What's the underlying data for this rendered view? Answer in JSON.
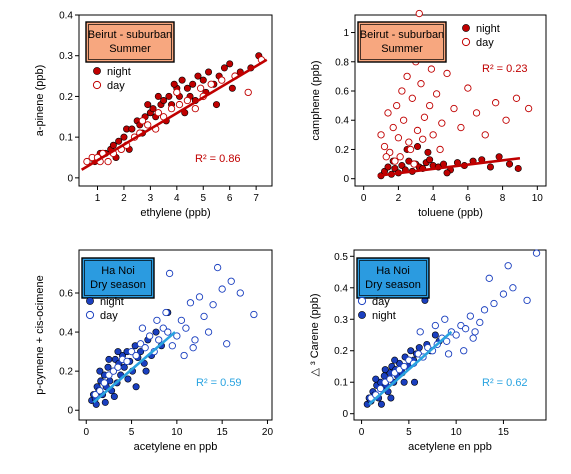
{
  "chart_data": [
    {
      "type": "scatter",
      "box_title": [
        "Beirut - suburban",
        "Summer"
      ],
      "box_color": "#f7a77f",
      "xlabel": "ethylene (ppb)",
      "ylabel": "a-pinene (ppb)",
      "xlim": [
        0.3,
        7.6
      ],
      "ylim": [
        -0.02,
        0.4
      ],
      "xticks": [
        1,
        2,
        3,
        4,
        5,
        6,
        7
      ],
      "yticks": [
        0.0,
        0.1,
        0.2,
        0.3,
        0.4
      ],
      "r2_text": "R² = 0.86",
      "r2_color": "#c00000",
      "fit": {
        "x": [
          0.4,
          7.4
        ],
        "y": [
          0.02,
          0.29
        ],
        "color": "#c00000"
      },
      "legend": [
        "night",
        "day"
      ],
      "legend_order": [
        "night",
        "day"
      ],
      "series": [
        {
          "name": "night",
          "style": "filled",
          "color": "#c00000",
          "x": [
            0.9,
            1.1,
            1.3,
            1.5,
            1.6,
            1.8,
            2.0,
            2.1,
            2.3,
            2.5,
            2.6,
            2.8,
            3.0,
            3.1,
            3.2,
            3.4,
            3.5,
            3.7,
            3.8,
            4.0,
            4.1,
            4.2,
            4.4,
            4.5,
            4.6,
            4.8,
            5.0,
            5.2,
            5.4,
            5.6,
            5.8,
            6.1,
            6.4,
            6.8,
            7.1,
            3.3,
            2.9,
            4.3,
            5.1,
            3.9,
            2.2,
            1.7,
            4.7,
            3.6,
            2.7,
            6.0,
            5.5
          ],
          "y": [
            0.04,
            0.06,
            0.06,
            0.07,
            0.08,
            0.09,
            0.1,
            0.12,
            0.12,
            0.14,
            0.13,
            0.15,
            0.16,
            0.17,
            0.15,
            0.18,
            0.19,
            0.2,
            0.18,
            0.22,
            0.2,
            0.24,
            0.22,
            0.2,
            0.23,
            0.25,
            0.24,
            0.26,
            0.23,
            0.25,
            0.27,
            0.22,
            0.26,
            0.27,
            0.3,
            0.2,
            0.18,
            0.16,
            0.21,
            0.23,
            0.07,
            0.05,
            0.19,
            0.14,
            0.11,
            0.28,
            0.18
          ]
        },
        {
          "name": "day",
          "style": "open",
          "color": "#c00000",
          "x": [
            0.6,
            0.8,
            1.0,
            1.2,
            1.4,
            1.6,
            1.9,
            2.1,
            2.4,
            2.6,
            2.9,
            3.2,
            3.5,
            3.8,
            4.1,
            4.4,
            4.7,
            5.0,
            5.3,
            5.7,
            6.2,
            6.7,
            7.2,
            1.1,
            2.7,
            3.3,
            4.0,
            4.9
          ],
          "y": [
            0.04,
            0.05,
            0.05,
            0.06,
            0.04,
            0.06,
            0.07,
            0.08,
            0.1,
            0.11,
            0.13,
            0.12,
            0.15,
            0.17,
            0.18,
            0.19,
            0.17,
            0.2,
            0.23,
            0.24,
            0.25,
            0.21,
            0.29,
            0.04,
            0.14,
            0.16,
            0.21,
            0.22
          ]
        }
      ]
    },
    {
      "type": "scatter",
      "box_title": [
        "Beirut - suburban",
        "Summer"
      ],
      "box_color": "#f7a77f",
      "xlabel": "toluene (ppb)",
      "ylabel": "camphene (ppb)",
      "xlim": [
        -0.5,
        10.5
      ],
      "ylim": [
        -0.05,
        1.12
      ],
      "xticks": [
        0,
        2,
        4,
        6,
        8,
        10
      ],
      "yticks": [
        0.0,
        0.2,
        0.4,
        0.6,
        0.8,
        1.0
      ],
      "r2_text": "R² = 0.23",
      "r2_color": "#c00000",
      "fit": {
        "x": [
          0.8,
          9.0
        ],
        "y": [
          0.02,
          0.14
        ],
        "color": "#c00000"
      },
      "legend": [
        "night",
        "day"
      ],
      "legend_order": [
        "night",
        "day"
      ],
      "series": [
        {
          "name": "night",
          "style": "filled",
          "color": "#c00000",
          "x": [
            1.0,
            1.2,
            1.4,
            1.6,
            1.8,
            2.0,
            2.2,
            2.4,
            2.6,
            2.8,
            3.0,
            3.2,
            3.4,
            3.6,
            3.8,
            4.0,
            4.3,
            4.6,
            5.0,
            5.4,
            5.8,
            6.3,
            6.8,
            7.3,
            7.8,
            8.4,
            8.9,
            2.5,
            3.1,
            3.7,
            1.7,
            4.8
          ],
          "y": [
            0.02,
            0.05,
            0.08,
            0.03,
            0.07,
            0.04,
            0.09,
            0.06,
            0.12,
            0.05,
            0.1,
            0.08,
            0.07,
            0.11,
            0.13,
            0.09,
            0.08,
            0.1,
            0.06,
            0.11,
            0.09,
            0.12,
            0.13,
            0.08,
            0.15,
            0.1,
            0.07,
            0.2,
            0.22,
            0.18,
            0.12,
            0.04
          ]
        },
        {
          "name": "day",
          "style": "open",
          "color": "#c00000",
          "x": [
            1.0,
            1.2,
            1.4,
            1.5,
            1.7,
            1.9,
            2.0,
            2.2,
            2.3,
            2.5,
            2.6,
            2.8,
            3.0,
            3.1,
            3.3,
            3.5,
            3.6,
            3.8,
            4.0,
            4.2,
            4.5,
            4.8,
            5.2,
            5.6,
            6.0,
            6.5,
            7.0,
            7.6,
            8.2,
            8.8,
            9.5,
            2.1,
            2.7,
            3.4,
            1.8,
            3.9,
            4.4,
            2.9,
            1.3,
            3.2
          ],
          "y": [
            0.3,
            0.22,
            0.45,
            0.18,
            0.35,
            0.5,
            0.28,
            0.6,
            0.4,
            0.7,
            0.25,
            0.55,
            0.8,
            0.33,
            0.65,
            0.42,
            0.9,
            0.5,
            0.3,
            0.58,
            0.38,
            0.72,
            0.48,
            0.35,
            0.62,
            0.45,
            0.3,
            0.52,
            0.4,
            0.55,
            0.48,
            0.15,
            0.2,
            0.27,
            0.12,
            0.75,
            0.2,
            0.1,
            0.15,
            1.13
          ]
        }
      ]
    },
    {
      "type": "scatter",
      "box_title": [
        "Ha Noi",
        "Dry season"
      ],
      "box_color": "#2b9be0",
      "xlabel": "acetylene en ppb",
      "ylabel": "p-cymene + cis-ocimene",
      "xlim": [
        -0.8,
        20.5
      ],
      "ylim": [
        -0.05,
        0.82
      ],
      "xticks": [
        0,
        5,
        10,
        15,
        20
      ],
      "yticks": [
        0.0,
        0.2,
        0.4,
        0.6
      ],
      "r2_text": "R² = 0.59",
      "r2_color": "#29a3e0",
      "fit": {
        "x": [
          0.8,
          9.8
        ],
        "y": [
          0.04,
          0.4
        ],
        "color": "#29a3e0"
      },
      "legend": [
        "night",
        "day"
      ],
      "legend_order": [
        "night",
        "day"
      ],
      "series": [
        {
          "name": "night",
          "style": "filled",
          "color": "#1a3fbf",
          "x": [
            0.6,
            0.8,
            1.0,
            1.2,
            1.4,
            1.6,
            1.8,
            2.0,
            2.2,
            2.4,
            2.6,
            2.8,
            3.0,
            3.2,
            3.4,
            3.6,
            3.8,
            4.0,
            4.2,
            4.5,
            4.8,
            5.1,
            5.4,
            5.7,
            6.0,
            6.4,
            6.8,
            7.2,
            7.7,
            8.3,
            9.0,
            1.5,
            2.5,
            3.5,
            4.6,
            2.1,
            3.1,
            1.1,
            5.5,
            6.6
          ],
          "y": [
            0.05,
            0.08,
            0.06,
            0.12,
            0.1,
            0.15,
            0.08,
            0.18,
            0.12,
            0.22,
            0.15,
            0.1,
            0.2,
            0.26,
            0.14,
            0.24,
            0.18,
            0.28,
            0.22,
            0.3,
            0.25,
            0.2,
            0.33,
            0.27,
            0.3,
            0.24,
            0.36,
            0.28,
            0.4,
            0.33,
            0.5,
            0.2,
            0.26,
            0.3,
            0.16,
            0.04,
            0.07,
            0.03,
            0.12,
            0.2
          ]
        },
        {
          "name": "day",
          "style": "open",
          "color": "#1a3fbf",
          "x": [
            1.0,
            1.5,
            2.0,
            2.5,
            3.0,
            3.5,
            4.0,
            4.5,
            5.0,
            5.5,
            6.0,
            6.5,
            7.0,
            7.5,
            8.0,
            8.5,
            9.0,
            9.5,
            10.0,
            10.5,
            11.0,
            11.5,
            12.0,
            13.0,
            14.0,
            15.0,
            16.0,
            17.0,
            18.5,
            12.5,
            13.5,
            9.2,
            10.8,
            11.8,
            14.5,
            6.2,
            7.8,
            8.8,
            15.5
          ],
          "y": [
            0.08,
            0.1,
            0.14,
            0.18,
            0.2,
            0.22,
            0.26,
            0.25,
            0.3,
            0.28,
            0.34,
            0.32,
            0.38,
            0.3,
            0.36,
            0.42,
            0.4,
            0.33,
            0.38,
            0.46,
            0.42,
            0.55,
            0.36,
            0.48,
            0.54,
            0.62,
            0.66,
            0.6,
            0.49,
            0.58,
            0.4,
            0.7,
            0.28,
            0.32,
            0.73,
            0.42,
            0.46,
            0.5,
            0.34
          ]
        }
      ]
    },
    {
      "type": "scatter",
      "box_title": [
        "Ha Noi",
        "Dry season"
      ],
      "box_color": "#2b9be0",
      "xlabel": "acetylene en ppb",
      "ylabel": "△ ³ Carene (ppb)",
      "xlim": [
        -0.8,
        19.5
      ],
      "ylim": [
        -0.02,
        0.52
      ],
      "xticks": [
        0,
        5,
        10,
        15
      ],
      "yticks": [
        0.0,
        0.1,
        0.2,
        0.3,
        0.4,
        0.5
      ],
      "r2_text": "R² = 0.62",
      "r2_color": "#29a3e0",
      "fit": {
        "x": [
          0.8,
          9.5
        ],
        "y": [
          0.03,
          0.26
        ],
        "color": "#29a3e0"
      },
      "legend": [
        "day",
        "night"
      ],
      "legend_order": [
        "day",
        "night"
      ],
      "series": [
        {
          "name": "night",
          "style": "filled",
          "color": "#1a3fbf",
          "x": [
            0.6,
            0.8,
            1.0,
            1.2,
            1.4,
            1.6,
            1.8,
            2.0,
            2.2,
            2.4,
            2.6,
            2.8,
            3.0,
            3.2,
            3.4,
            3.6,
            3.8,
            4.0,
            4.3,
            4.6,
            4.9,
            5.2,
            5.5,
            5.8,
            6.1,
            6.5,
            6.9,
            7.3,
            7.8,
            8.2,
            1.5,
            2.5,
            3.5,
            4.5,
            2.1,
            3.1,
            5.6,
            6.7
          ],
          "y": [
            0.03,
            0.05,
            0.04,
            0.07,
            0.06,
            0.09,
            0.05,
            0.1,
            0.08,
            0.12,
            0.09,
            0.07,
            0.13,
            0.15,
            0.1,
            0.14,
            0.12,
            0.16,
            0.13,
            0.18,
            0.15,
            0.2,
            0.17,
            0.19,
            0.21,
            0.18,
            0.22,
            0.2,
            0.25,
            0.23,
            0.11,
            0.14,
            0.17,
            0.1,
            0.03,
            0.05,
            0.1,
            0.36
          ]
        },
        {
          "name": "day",
          "style": "open",
          "color": "#1a3fbf",
          "x": [
            1.0,
            1.5,
            2.0,
            2.5,
            3.0,
            3.5,
            4.0,
            4.5,
            5.0,
            5.5,
            6.0,
            6.5,
            7.0,
            7.5,
            8.0,
            8.5,
            9.0,
            9.5,
            10.0,
            10.5,
            11.0,
            11.5,
            12.0,
            12.5,
            13.0,
            14.0,
            15.0,
            16.0,
            17.5,
            18.5,
            9.2,
            10.8,
            11.8,
            13.5,
            6.2,
            7.8,
            8.8,
            15.5
          ],
          "y": [
            0.05,
            0.06,
            0.08,
            0.1,
            0.11,
            0.13,
            0.14,
            0.15,
            0.17,
            0.16,
            0.19,
            0.18,
            0.21,
            0.2,
            0.22,
            0.24,
            0.23,
            0.26,
            0.25,
            0.28,
            0.27,
            0.31,
            0.26,
            0.29,
            0.33,
            0.35,
            0.38,
            0.4,
            0.36,
            0.51,
            0.19,
            0.2,
            0.24,
            0.43,
            0.26,
            0.28,
            0.3,
            0.47
          ]
        }
      ]
    }
  ]
}
